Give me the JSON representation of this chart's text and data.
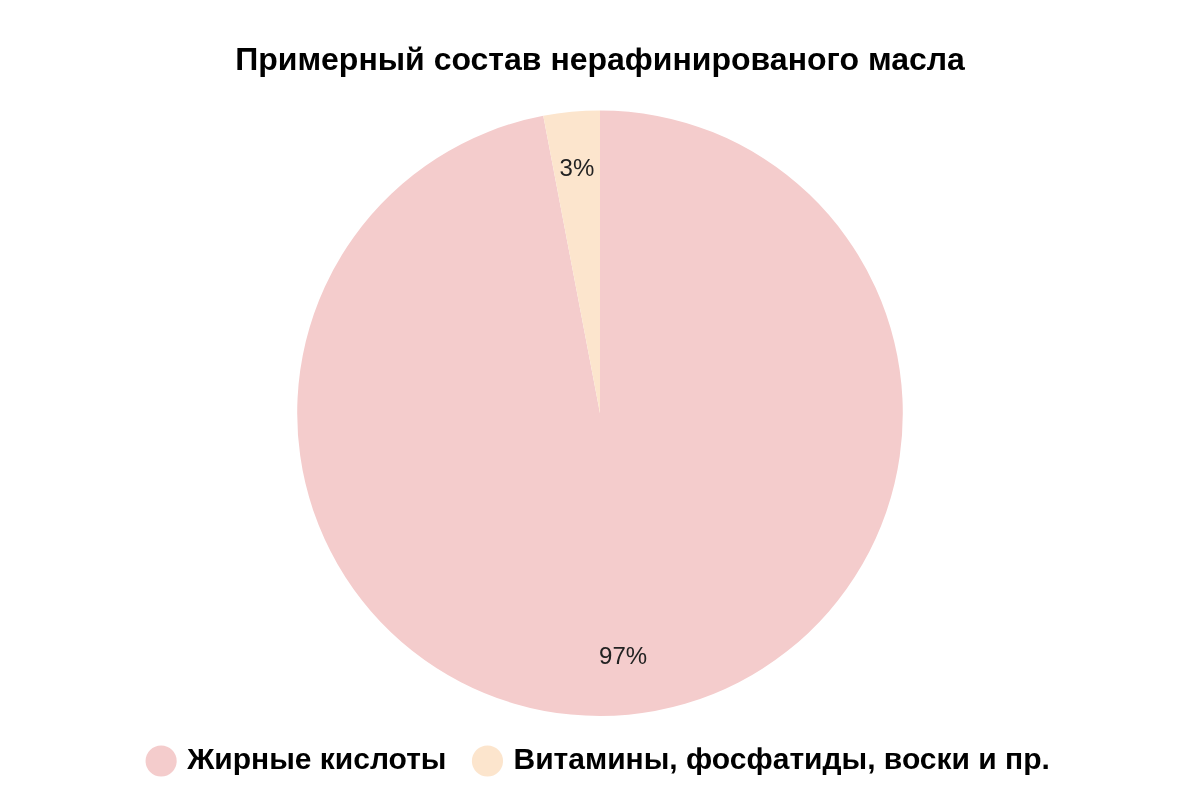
{
  "chart_data": {
    "type": "pie",
    "title": "Примерный состав нерафинированого масла",
    "categories": [
      "Жирные кислоты",
      "Витамины, фосфатиды, воски и пр."
    ],
    "values": [
      97,
      3
    ],
    "value_labels": [
      "97%",
      "3%"
    ],
    "colors": [
      "#f4cccc",
      "#fce5cd"
    ],
    "legend": "bottom"
  }
}
